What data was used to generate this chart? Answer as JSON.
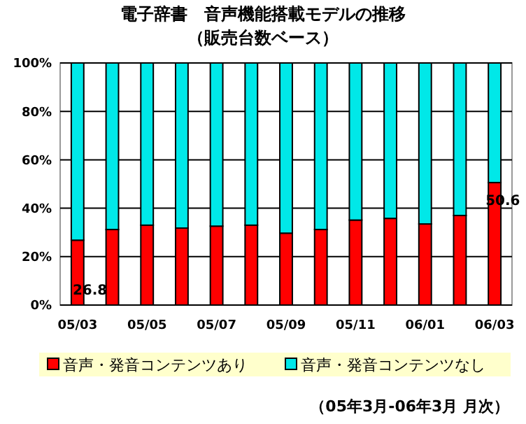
{
  "chart_data": {
    "type": "bar",
    "title": "電子辞書　音声機能搭載モデルの推移",
    "subtitle": "（販売台数ベース）",
    "categories": [
      "05/03",
      null,
      "05/05",
      null,
      "05/07",
      null,
      "05/09",
      null,
      "05/11",
      null,
      "06/01",
      null,
      "06/03"
    ],
    "stacked": true,
    "series": [
      {
        "name": "音声・発音コンテンツあり",
        "color": "#ff0000",
        "values": [
          26.8,
          31.2,
          33,
          31.8,
          32.6,
          33,
          29.7,
          31.2,
          35.1,
          35.8,
          33.5,
          37,
          50.6
        ],
        "value_labels": [
          "26.8",
          null,
          null,
          null,
          null,
          null,
          null,
          null,
          null,
          null,
          null,
          null,
          "50.6"
        ]
      },
      {
        "name": "音声・発音コンテンツなし",
        "color": "#00e8e8",
        "values": [
          73.2,
          68.8,
          67,
          68.2,
          67.4,
          67,
          70.3,
          68.8,
          64.9,
          64.2,
          66.5,
          63,
          49.4
        ]
      }
    ],
    "ylim": [
      0,
      100
    ],
    "yticks": [
      {
        "value": 0,
        "label": "0%"
      },
      {
        "value": 20,
        "label": "20%"
      },
      {
        "value": 40,
        "label": "40%"
      },
      {
        "value": 60,
        "label": "60%"
      },
      {
        "value": 80,
        "label": "80%"
      },
      {
        "value": 100,
        "label": "100%"
      }
    ],
    "grid": "y",
    "legend": "bottom",
    "annotations": [
      "（05年3月-06年3月 月次）"
    ]
  }
}
